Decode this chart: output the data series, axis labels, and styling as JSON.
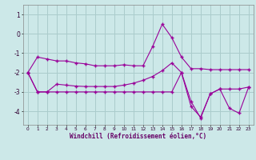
{
  "x": [
    0,
    1,
    2,
    3,
    4,
    5,
    6,
    7,
    8,
    9,
    10,
    11,
    12,
    13,
    14,
    15,
    16,
    17,
    18,
    19,
    20,
    21,
    22,
    23
  ],
  "line1": [
    -2.0,
    -1.2,
    -1.3,
    -1.4,
    -1.4,
    -1.5,
    -1.55,
    -1.65,
    -1.65,
    -1.65,
    -1.6,
    -1.65,
    -1.65,
    -0.65,
    0.5,
    -0.2,
    -1.2,
    -1.8,
    -1.8,
    -1.85,
    -1.85,
    -1.85,
    -1.85,
    -1.85
  ],
  "line2": [
    -2.0,
    -3.0,
    -3.0,
    -2.6,
    -2.65,
    -2.7,
    -2.72,
    -2.72,
    -2.72,
    -2.72,
    -2.65,
    -2.55,
    -2.4,
    -2.2,
    -1.9,
    -1.5,
    -2.0,
    -3.75,
    -4.3,
    -3.1,
    -2.85,
    -3.85,
    -4.1,
    -2.75
  ],
  "line3": [
    -2.0,
    -3.0,
    -3.0,
    -3.0,
    -3.0,
    -3.0,
    -3.0,
    -3.0,
    -3.0,
    -3.0,
    -3.0,
    -3.0,
    -3.0,
    -3.0,
    -3.0,
    -3.0,
    -2.0,
    -3.5,
    -4.35,
    -3.1,
    -2.85,
    -2.85,
    -2.85,
    -2.75
  ],
  "background_color": "#cce8e8",
  "grid_color": "#aacccc",
  "line_color": "#990099",
  "xlabel": "Windchill (Refroidissement éolien,°C)",
  "ylim": [
    -4.7,
    1.5
  ],
  "xlim": [
    -0.5,
    23.5
  ],
  "yticks": [
    -4,
    -3,
    -2,
    -1,
    0,
    1
  ],
  "xticks": [
    0,
    1,
    2,
    3,
    4,
    5,
    6,
    7,
    8,
    9,
    10,
    11,
    12,
    13,
    14,
    15,
    16,
    17,
    18,
    19,
    20,
    21,
    22,
    23
  ],
  "xlabel_color": "#660066",
  "tick_color": "#330033",
  "spine_color": "#888888"
}
